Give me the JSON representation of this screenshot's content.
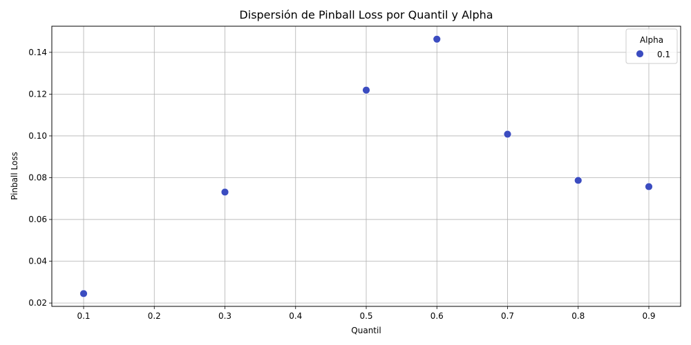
{
  "chart_data": {
    "type": "scatter",
    "title": "Dispersión de Pinball Loss por Quantil y Alpha",
    "xlabel": "Quantil",
    "ylabel": "Pinball Loss",
    "xlim": [
      0.055,
      0.945
    ],
    "ylim": [
      0.0184,
      0.1525
    ],
    "xticks": [
      0.1,
      0.2,
      0.3,
      0.4,
      0.5,
      0.6,
      0.7,
      0.8,
      0.9
    ],
    "xtick_labels": [
      "0.1",
      "0.2",
      "0.3",
      "0.4",
      "0.5",
      "0.6",
      "0.7",
      "0.8",
      "0.9"
    ],
    "yticks": [
      0.02,
      0.04,
      0.06,
      0.08,
      0.1,
      0.12,
      0.14
    ],
    "ytick_labels": [
      "0.02",
      "0.04",
      "0.06",
      "0.08",
      "0.10",
      "0.12",
      "0.14"
    ],
    "grid": true,
    "legend": {
      "title": "Alpha",
      "placement": "top-right"
    },
    "series": [
      {
        "name": "0.1",
        "color": "#3b4cc0",
        "x": [
          0.1,
          0.3,
          0.5,
          0.6,
          0.7,
          0.8,
          0.9
        ],
        "y": [
          0.0245,
          0.0731,
          0.1219,
          0.1463,
          0.1008,
          0.0787,
          0.0757
        ]
      }
    ]
  }
}
